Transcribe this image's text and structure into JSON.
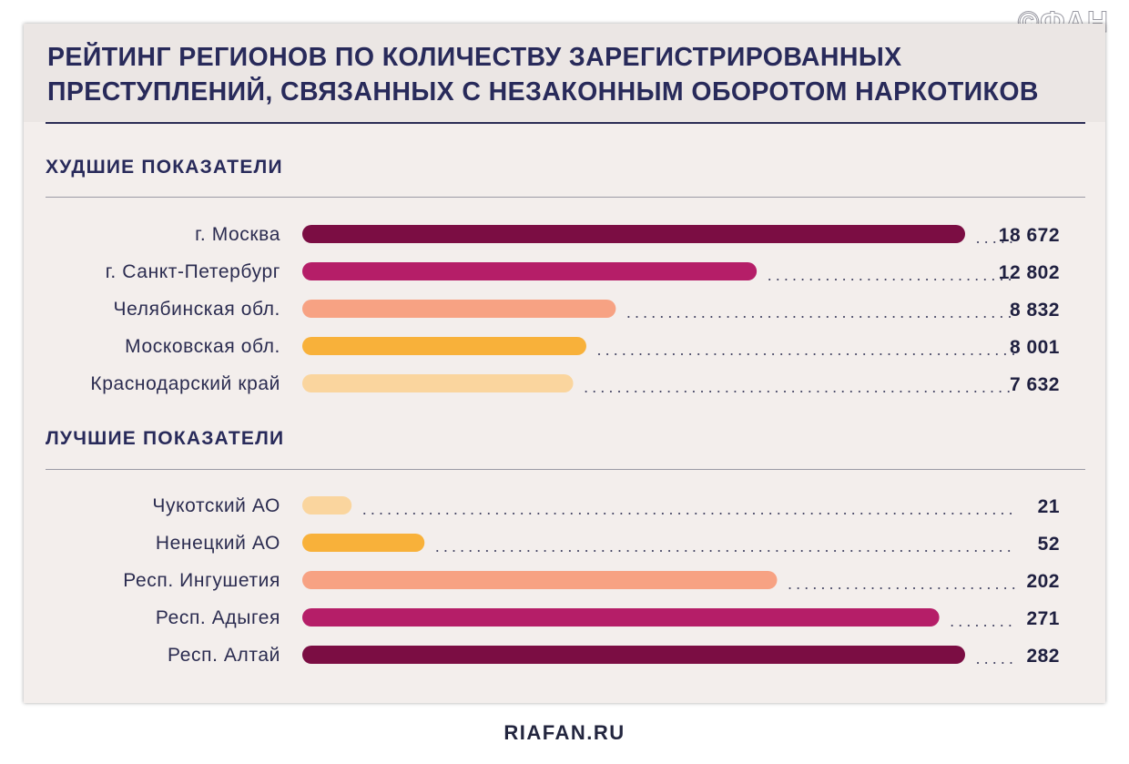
{
  "watermark": "©ФАН",
  "footer": "RIAFAN.RU",
  "colors": {
    "background": "#f3eeec",
    "header_bg": "#ebe6e4",
    "text_dark": "#282a5a",
    "dot": "#3a3b5c"
  },
  "chart_data": {
    "type": "bar",
    "orientation": "horizontal",
    "title": "РЕЙТИНГ РЕГИОНОВ ПО КОЛИЧЕСТВУ ЗАРЕГИСТРИРОВАННЫХ ПРЕСТУПЛЕНИЙ, СВЯЗАННЫХ С НЕЗАКОННЫМ ОБОРОТОМ НАРКОТИКОВ",
    "title_lines": [
      "РЕЙТИНГ РЕГИОНОВ ПО КОЛИЧЕСТВУ ЗАРЕГИСТРИРОВАННЫХ",
      "ПРЕСТУПЛЕНИЙ, СВЯЗАННЫХ С НЕЗАКОННЫМ ОБОРОТОМ НАРКОТИКОВ"
    ],
    "groups": [
      {
        "name": "ХУДШИЕ ПОКАЗАТЕЛИ",
        "scale_max": 18672,
        "items": [
          {
            "label": "г. Москва",
            "value": 18672,
            "value_label": "18 672",
            "color": "#7b0d43"
          },
          {
            "label": "г. Санкт-Петербург",
            "value": 12802,
            "value_label": "12 802",
            "color": "#b51e68"
          },
          {
            "label": "Челябинская обл.",
            "value": 8832,
            "value_label": "8 832",
            "color": "#f7a283"
          },
          {
            "label": "Московская обл.",
            "value": 8001,
            "value_label": "8 001",
            "color": "#f8b13a"
          },
          {
            "label": "Краснодарский край",
            "value": 7632,
            "value_label": "7 632",
            "color": "#fad59e"
          }
        ]
      },
      {
        "name": "ЛУЧШИЕ ПОКАЗАТЕЛИ",
        "scale_max": 282,
        "items": [
          {
            "label": "Чукотский АО",
            "value": 21,
            "value_label": "21",
            "color": "#fad59e"
          },
          {
            "label": "Ненецкий АО",
            "value": 52,
            "value_label": "52",
            "color": "#f8b13a"
          },
          {
            "label": "Респ. Ингушетия",
            "value": 202,
            "value_label": "202",
            "color": "#f7a283"
          },
          {
            "label": "Респ. Адыгея",
            "value": 271,
            "value_label": "271",
            "color": "#b51e68"
          },
          {
            "label": "Респ. Алтай",
            "value": 282,
            "value_label": "282",
            "color": "#7b0d43"
          }
        ]
      }
    ]
  }
}
